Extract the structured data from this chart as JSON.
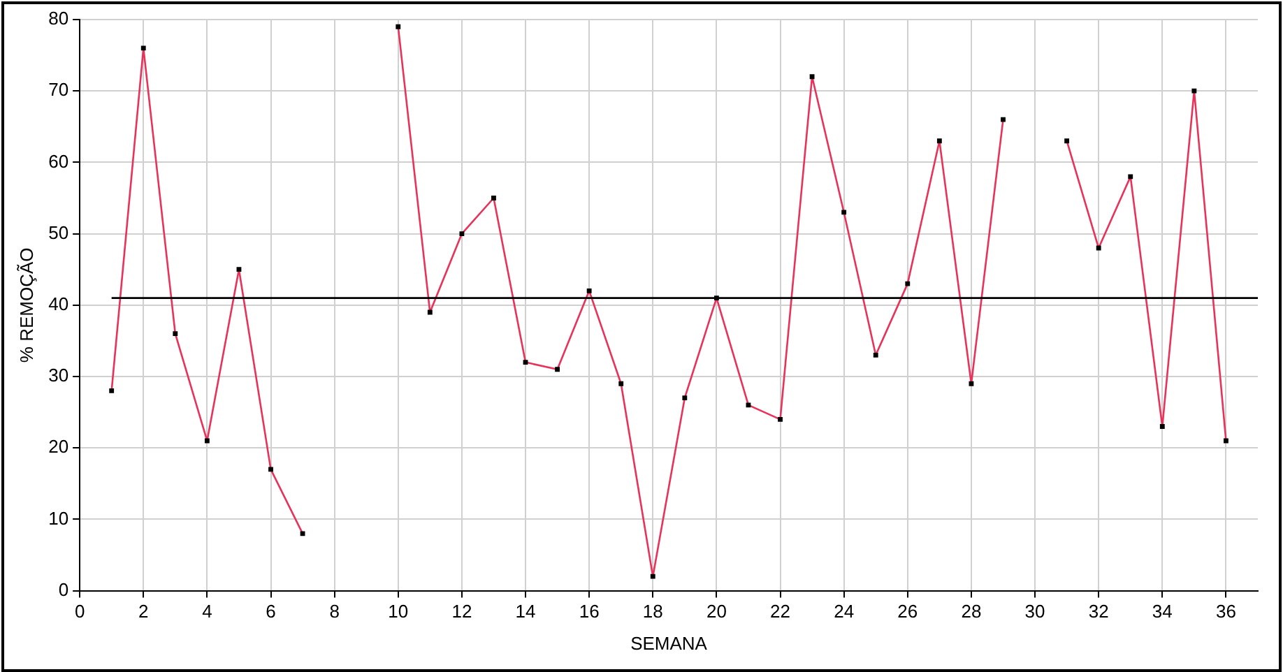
{
  "chart_data": {
    "type": "line",
    "xlabel": "SEMANA",
    "ylabel": "% REMOÇÃO",
    "x": [
      1,
      2,
      3,
      4,
      5,
      6,
      7,
      8,
      9,
      10,
      11,
      12,
      13,
      14,
      15,
      16,
      17,
      18,
      19,
      20,
      21,
      22,
      23,
      24,
      25,
      26,
      27,
      28,
      29,
      30,
      31,
      32,
      33,
      34,
      35,
      36
    ],
    "series": [
      {
        "color": "#e8325a",
        "values": [
          28,
          76,
          36,
          21,
          45,
          17,
          8,
          null,
          null,
          79,
          39,
          50,
          55,
          32,
          31,
          42,
          29,
          2,
          27,
          41,
          26,
          24,
          72,
          53,
          33,
          43,
          63,
          29,
          66,
          null,
          63,
          48,
          58,
          23,
          70,
          21
        ]
      }
    ],
    "xlim": [
      0,
      37
    ],
    "xticks": [
      0,
      2,
      4,
      6,
      8,
      10,
      12,
      14,
      16,
      18,
      20,
      22,
      24,
      26,
      28,
      30,
      32,
      34,
      36
    ],
    "ylim": [
      0,
      80
    ],
    "yticks": [
      0,
      10,
      20,
      30,
      40,
      50,
      60,
      70,
      80
    ],
    "ref_lines": [
      {
        "axis": "y",
        "value": 41,
        "color": "#000000"
      }
    ],
    "grid": true,
    "legend": false,
    "marker": "square",
    "line_style": "solid"
  }
}
